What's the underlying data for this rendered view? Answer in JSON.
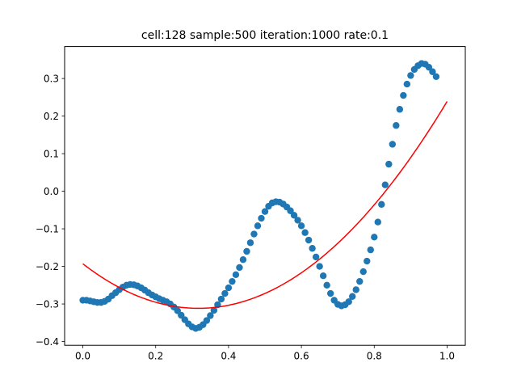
{
  "chart_data": {
    "type": "scatter",
    "title": "cell:128 sample:500 iteration:1000 rate:0.1",
    "xlabel": "",
    "ylabel": "",
    "xlim": [
      -0.05,
      1.05
    ],
    "ylim": [
      -0.41,
      0.385
    ],
    "grid": false,
    "legend": "none",
    "x_ticks": [
      {
        "value": 0.0,
        "label": "0.0"
      },
      {
        "value": 0.2,
        "label": "0.2"
      },
      {
        "value": 0.4,
        "label": "0.4"
      },
      {
        "value": 0.6,
        "label": "0.6"
      },
      {
        "value": 0.8,
        "label": "0.8"
      },
      {
        "value": 1.0,
        "label": "1.0"
      }
    ],
    "y_ticks": [
      {
        "value": -0.4,
        "label": "−0.4"
      },
      {
        "value": -0.3,
        "label": "−0.3"
      },
      {
        "value": -0.2,
        "label": "−0.2"
      },
      {
        "value": -0.1,
        "label": "−0.1"
      },
      {
        "value": 0.0,
        "label": "0.0"
      },
      {
        "value": 0.1,
        "label": "0.1"
      },
      {
        "value": 0.2,
        "label": "0.2"
      },
      {
        "value": 0.3,
        "label": "0.3"
      }
    ],
    "series": [
      {
        "kind": "scatter",
        "color": "#1f77b4",
        "points": [
          [
            0.0,
            -0.29
          ],
          [
            0.01,
            -0.29
          ],
          [
            0.02,
            -0.292
          ],
          [
            0.03,
            -0.294
          ],
          [
            0.04,
            -0.296
          ],
          [
            0.05,
            -0.296
          ],
          [
            0.06,
            -0.293
          ],
          [
            0.07,
            -0.287
          ],
          [
            0.08,
            -0.278
          ],
          [
            0.09,
            -0.27
          ],
          [
            0.1,
            -0.262
          ],
          [
            0.11,
            -0.255
          ],
          [
            0.12,
            -0.25
          ],
          [
            0.13,
            -0.248
          ],
          [
            0.14,
            -0.249
          ],
          [
            0.15,
            -0.252
          ],
          [
            0.16,
            -0.257
          ],
          [
            0.17,
            -0.263
          ],
          [
            0.18,
            -0.27
          ],
          [
            0.19,
            -0.276
          ],
          [
            0.2,
            -0.281
          ],
          [
            0.21,
            -0.286
          ],
          [
            0.22,
            -0.29
          ],
          [
            0.23,
            -0.294
          ],
          [
            0.24,
            -0.3
          ],
          [
            0.25,
            -0.308
          ],
          [
            0.26,
            -0.318
          ],
          [
            0.27,
            -0.33
          ],
          [
            0.28,
            -0.342
          ],
          [
            0.29,
            -0.353
          ],
          [
            0.3,
            -0.361
          ],
          [
            0.31,
            -0.365
          ],
          [
            0.32,
            -0.362
          ],
          [
            0.33,
            -0.355
          ],
          [
            0.34,
            -0.344
          ],
          [
            0.35,
            -0.331
          ],
          [
            0.36,
            -0.317
          ],
          [
            0.37,
            -0.302
          ],
          [
            0.38,
            -0.287
          ],
          [
            0.39,
            -0.272
          ],
          [
            0.4,
            -0.257
          ],
          [
            0.41,
            -0.24
          ],
          [
            0.42,
            -0.222
          ],
          [
            0.43,
            -0.203
          ],
          [
            0.44,
            -0.182
          ],
          [
            0.45,
            -0.16
          ],
          [
            0.46,
            -0.137
          ],
          [
            0.47,
            -0.114
          ],
          [
            0.48,
            -0.092
          ],
          [
            0.49,
            -0.072
          ],
          [
            0.5,
            -0.054
          ],
          [
            0.51,
            -0.04
          ],
          [
            0.52,
            -0.031
          ],
          [
            0.53,
            -0.028
          ],
          [
            0.54,
            -0.029
          ],
          [
            0.55,
            -0.034
          ],
          [
            0.56,
            -0.042
          ],
          [
            0.57,
            -0.052
          ],
          [
            0.58,
            -0.064
          ],
          [
            0.59,
            -0.077
          ],
          [
            0.6,
            -0.092
          ],
          [
            0.61,
            -0.11
          ],
          [
            0.62,
            -0.13
          ],
          [
            0.63,
            -0.152
          ],
          [
            0.64,
            -0.175
          ],
          [
            0.65,
            -0.2
          ],
          [
            0.66,
            -0.225
          ],
          [
            0.67,
            -0.25
          ],
          [
            0.68,
            -0.272
          ],
          [
            0.69,
            -0.29
          ],
          [
            0.7,
            -0.301
          ],
          [
            0.71,
            -0.305
          ],
          [
            0.72,
            -0.302
          ],
          [
            0.73,
            -0.294
          ],
          [
            0.74,
            -0.28
          ],
          [
            0.75,
            -0.262
          ],
          [
            0.76,
            -0.24
          ],
          [
            0.77,
            -0.214
          ],
          [
            0.78,
            -0.186
          ],
          [
            0.79,
            -0.156
          ],
          [
            0.8,
            -0.122
          ],
          [
            0.81,
            -0.082
          ],
          [
            0.82,
            -0.035
          ],
          [
            0.83,
            0.017
          ],
          [
            0.84,
            0.072
          ],
          [
            0.85,
            0.125
          ],
          [
            0.86,
            0.175
          ],
          [
            0.87,
            0.218
          ],
          [
            0.88,
            0.255
          ],
          [
            0.89,
            0.285
          ],
          [
            0.9,
            0.308
          ],
          [
            0.91,
            0.324
          ],
          [
            0.92,
            0.334
          ],
          [
            0.93,
            0.34
          ],
          [
            0.94,
            0.338
          ],
          [
            0.95,
            0.33
          ],
          [
            0.96,
            0.318
          ],
          [
            0.97,
            0.305
          ]
        ]
      },
      {
        "kind": "line",
        "color": "#ff0000",
        "quadratic_coefficients": [
          -0.193,
          -0.748,
          1.18
        ]
      }
    ]
  }
}
